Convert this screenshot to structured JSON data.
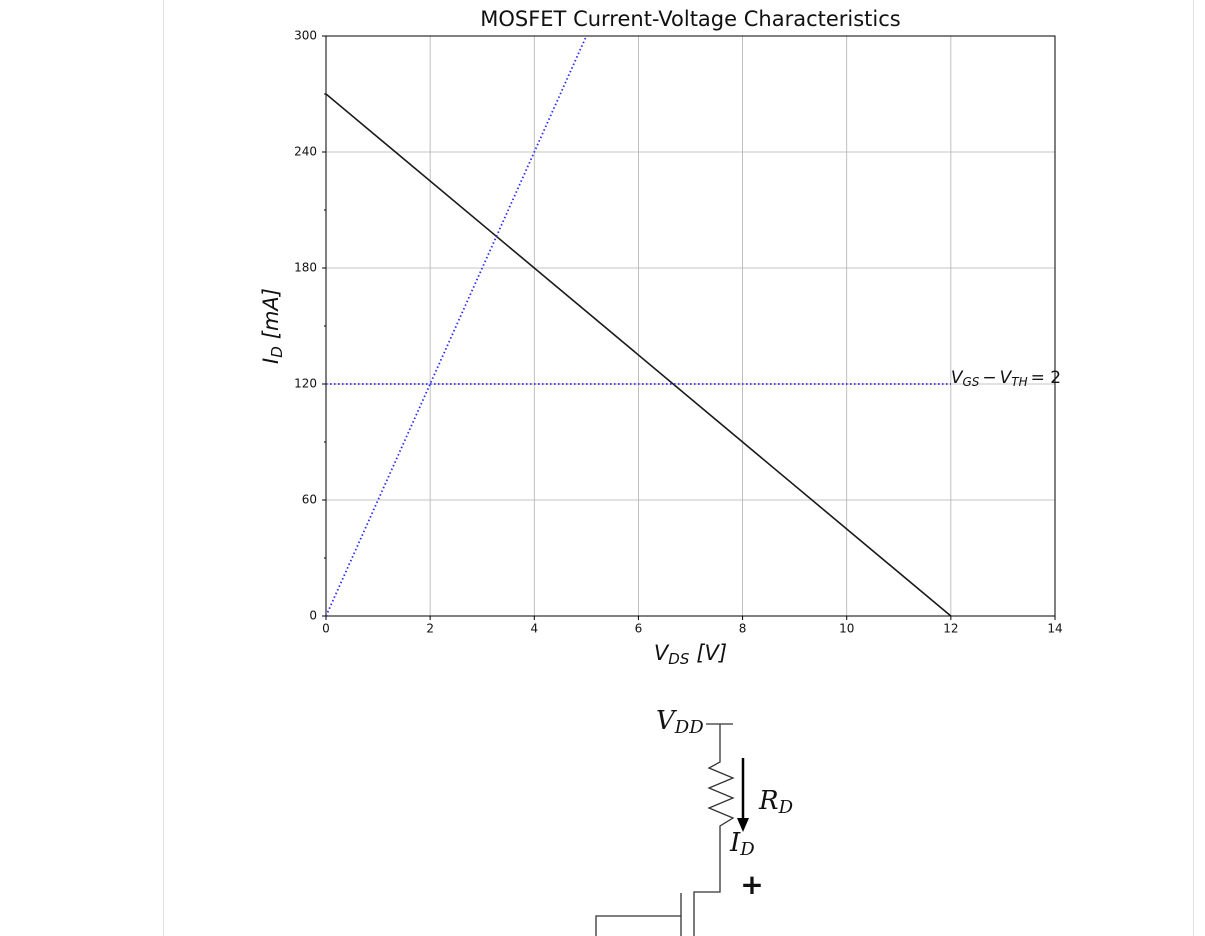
{
  "chart_data": {
    "type": "line",
    "title": "MOSFET Current-Voltage Characteristics",
    "xlabel": {
      "main": "V",
      "sub": "DS",
      "rest": "[V]"
    },
    "ylabel": {
      "main": "I",
      "sub": "D",
      "rest": "[mA]"
    },
    "xlim": [
      0,
      14
    ],
    "xticks": [
      0,
      2,
      4,
      6,
      8,
      10,
      12,
      14
    ],
    "ylim": [
      0,
      300
    ],
    "yticks": [
      0,
      60,
      120,
      180,
      240,
      300
    ],
    "yminor": [
      30,
      90,
      150,
      210,
      270
    ],
    "grid": true,
    "series": [
      {
        "color": "#1a1a1a",
        "linestyle": "solid",
        "x": [
          0,
          12
        ],
        "values": [
          270,
          0
        ]
      },
      {
        "color": "#2b2bff",
        "linestyle": "dotted",
        "x": [
          0,
          5
        ],
        "values": [
          0,
          300
        ]
      },
      {
        "color": "#2b2bff",
        "linestyle": "dotted",
        "x": [
          0,
          12
        ],
        "values": [
          120,
          120
        ]
      }
    ],
    "annotation": {
      "x": 12,
      "y": 120,
      "v1": "V",
      "s1": "GS",
      "op": "−",
      "v2": "V",
      "s2": "TH",
      "eq": "= 2"
    }
  },
  "circuit": {
    "vdd": {
      "main": "V",
      "sub": "DD"
    },
    "rd": {
      "main": "R",
      "sub": "D"
    },
    "id": {
      "main": "I",
      "sub": "D"
    },
    "plus": "+"
  }
}
